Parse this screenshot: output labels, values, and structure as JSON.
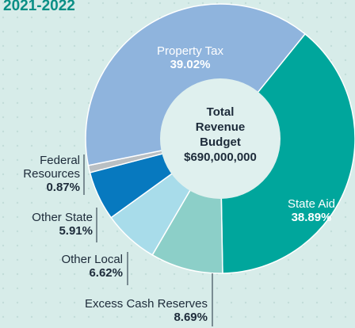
{
  "chart_data": {
    "type": "pie",
    "title": "2021-2022",
    "center_text": [
      "Total",
      "Revenue",
      "Budget",
      "$690,000,000"
    ],
    "categories": [
      "State Aid",
      "Excess Cash Reserves",
      "Other Local",
      "Other State",
      "Federal Resources",
      "Property Tax"
    ],
    "values": [
      38.89,
      8.69,
      6.62,
      5.91,
      0.87,
      39.02
    ],
    "value_labels": [
      "38.89%",
      "8.69%",
      "6.62%",
      "5.91%",
      "0.87%",
      "39.02%"
    ],
    "colors": [
      "#00a69c",
      "#8ccfc8",
      "#a8dcea",
      "#0779bf",
      "#b9bfc3",
      "#8fb4dd"
    ]
  }
}
